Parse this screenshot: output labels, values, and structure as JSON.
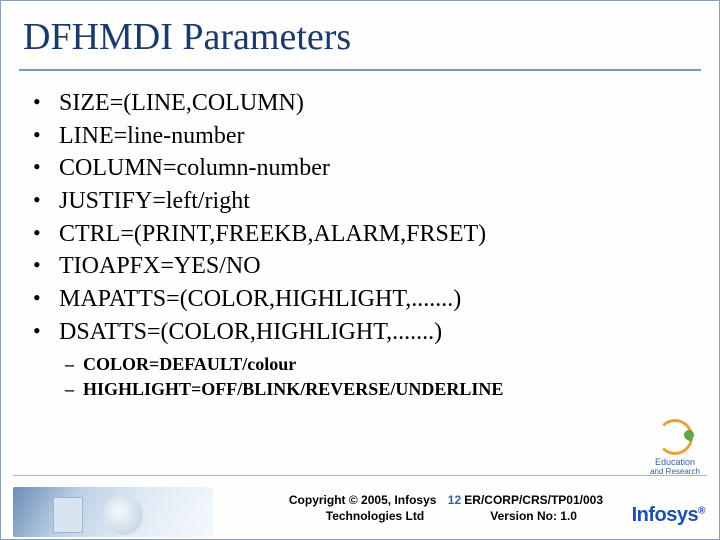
{
  "title": "DFHMDI Parameters",
  "bullets": [
    "SIZE=(LINE,COLUMN)",
    "LINE=line-number",
    "COLUMN=column-number",
    "JUSTIFY=left/right",
    "CTRL=(PRINT,FREEKB,ALARM,FRSET)",
    "TIOAPFX=YES/NO",
    "MAPATTS=(COLOR,HIGHLIGHT,.......)",
    "DSATTS=(COLOR,HIGHLIGHT,.......)"
  ],
  "subbullets": [
    "COLOR=DEFAULT/colour",
    "HIGHLIGHT=OFF/BLINK/REVERSE/UNDERLINE"
  ],
  "footer": {
    "copyright_line1": "Copyright © 2005, Infosys",
    "copyright_line2": "Technologies Ltd",
    "page_number": "12",
    "ref_line1": "ER/CORP/CRS/TP01/003",
    "ref_line2": "Version No: 1.0",
    "logo_text": "Infosys",
    "badge_line1": "Education",
    "badge_line2": "and Research"
  },
  "colors": {
    "title": "#1a3a6a",
    "rule": "#7a94b4",
    "border": "#88a0bc",
    "page_num": "#3a5ea0",
    "logo": "#1d4fb0"
  }
}
